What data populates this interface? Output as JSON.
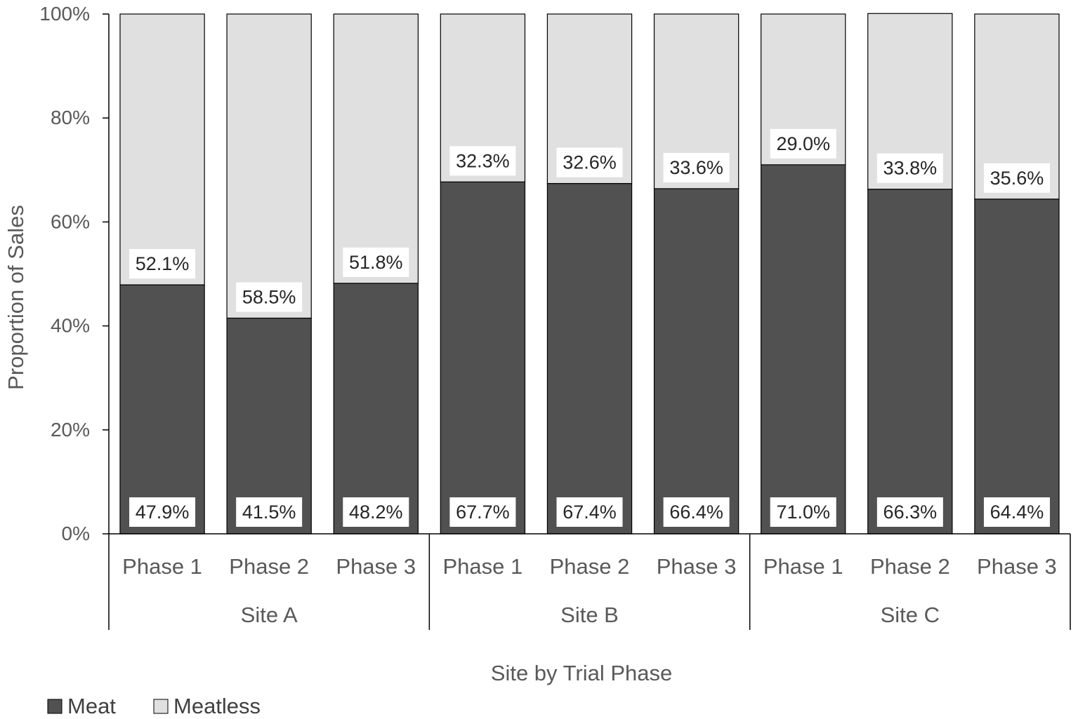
{
  "chart_data": {
    "type": "bar",
    "stacked": true,
    "percent_stacked": true,
    "xlabel": "Site by Trial Phase",
    "ylabel": "Proportion of Sales",
    "ylim": [
      0,
      100
    ],
    "y_ticks": [
      "0%",
      "20%",
      "40%",
      "60%",
      "80%",
      "100%"
    ],
    "groups": [
      {
        "name": "Site A",
        "categories": [
          "Phase 1",
          "Phase 2",
          "Phase 3"
        ]
      },
      {
        "name": "Site B",
        "categories": [
          "Phase 1",
          "Phase 2",
          "Phase 3"
        ]
      },
      {
        "name": "Site C",
        "categories": [
          "Phase 1",
          "Phase 2",
          "Phase 3"
        ]
      }
    ],
    "series": [
      {
        "name": "Meat",
        "color": "#515151",
        "values": [
          47.9,
          41.5,
          48.2,
          67.7,
          67.4,
          66.4,
          71.0,
          66.3,
          64.4
        ],
        "labels": [
          "47.9%",
          "41.5%",
          "48.2%",
          "67.7%",
          "67.4%",
          "66.4%",
          "71.0%",
          "66.3%",
          "64.4%"
        ]
      },
      {
        "name": "Meatless",
        "color": "#e0e0e0",
        "values": [
          52.1,
          58.5,
          51.8,
          32.3,
          32.6,
          33.6,
          29.0,
          33.8,
          35.6
        ],
        "labels": [
          "52.1%",
          "58.5%",
          "51.8%",
          "32.3%",
          "32.6%",
          "33.6%",
          "29.0%",
          "33.8%",
          "35.6%"
        ]
      }
    ],
    "grid": false,
    "legend_position": "bottom-left"
  }
}
